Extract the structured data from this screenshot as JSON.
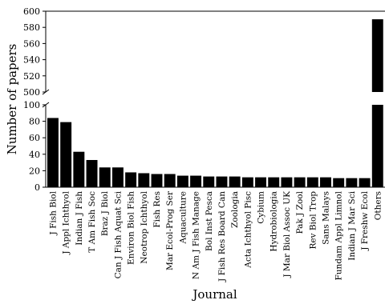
{
  "chart_data": {
    "type": "bar",
    "xlabel": "Journal",
    "ylabel": "Number of papers",
    "broken_y_axis": true,
    "lower_panel": {
      "ylim": [
        0,
        100
      ],
      "yticks": [
        0,
        20,
        40,
        60,
        80,
        100
      ]
    },
    "upper_panel": {
      "ylim": [
        500,
        600
      ],
      "yticks": [
        500,
        520,
        540,
        560,
        580,
        600
      ]
    },
    "categories": [
      "J Fish Biol",
      "J Appl Ichthyol",
      "Indian J Fish",
      "T Am Fish Soc",
      "Braz J Biol",
      "Can J Fish Aquat Sci",
      "Environ Biol Fish",
      "Neotrop Ichthyol",
      "Fish Res",
      "Mar Ecol-Prog Ser",
      "Aquaculture",
      "N Am J Fish Manage",
      "Bol Inst Pesca",
      "J Fish Res Board Can",
      "Zoologia",
      "Acta Ichthyol Pisc",
      "Cybium",
      "Hydrobiologia",
      "J Mar Biol Assoc UK",
      "Pak J Zool",
      "Rev Biol Trop",
      "Sans Malays",
      "Fundam Appl Limnol",
      "Indian J Mar Sci",
      "J Freshw Ecol",
      "Others"
    ],
    "values": [
      84,
      79,
      43,
      33,
      24,
      24,
      18,
      17,
      16,
      16,
      14,
      14,
      13,
      13,
      13,
      12,
      12,
      12,
      12,
      12,
      12,
      12,
      11,
      11,
      11,
      590
    ],
    "grid": false,
    "legend": "none",
    "bar_color": "#000000"
  }
}
